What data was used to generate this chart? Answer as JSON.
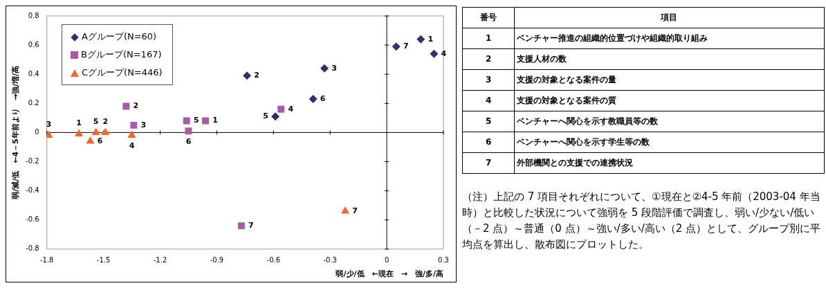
{
  "chart_data": [
    {
      "type": "scatter",
      "xlabel": "弱/少/低　←現在　→　強/多/高",
      "ylabel": "弱/減/低　←4－5年前より　→強/増/高",
      "xlim": [
        -1.8,
        0.3
      ],
      "ylim": [
        -0.8,
        0.8
      ],
      "xticks": [
        -1.8,
        -1.5,
        -1.2,
        -0.9,
        -0.6,
        -0.3,
        0,
        0.3
      ],
      "yticks": [
        -0.8,
        -0.6,
        -0.4,
        -0.2,
        0,
        0.2,
        0.4,
        0.6,
        0.8
      ],
      "legend": "top left",
      "series": [
        {
          "name": "Aグループ(N=60)",
          "color": "#2e3070",
          "marker": "diamond",
          "x": [
            0.18,
            -0.74,
            -0.33,
            0.25,
            -0.59,
            -0.39,
            0.05
          ],
          "values": [
            0.64,
            0.39,
            0.44,
            0.54,
            0.11,
            0.23,
            0.59
          ]
        },
        {
          "name": "Bグループ(N=167)",
          "color": "#a65aa8",
          "marker": "square",
          "x": [
            -0.96,
            -1.38,
            -1.34,
            -0.56,
            -1.06,
            -1.05,
            -0.77
          ],
          "values": [
            0.08,
            0.18,
            0.05,
            0.16,
            0.08,
            0.01,
            -0.64
          ]
        },
        {
          "name": "Cグループ(N=446)",
          "color": "#f2682a",
          "marker": "triangle",
          "x": [
            -1.63,
            -1.49,
            -1.79,
            -1.35,
            -1.54,
            -1.57,
            -0.22
          ],
          "values": [
            -0.01,
            0.0,
            -0.02,
            -0.02,
            0.0,
            -0.06,
            -0.54
          ]
        }
      ],
      "annotations": [
        {
          "text": "1",
          "x": 0.18,
          "y": 0.64
        },
        {
          "text": "2",
          "x": -0.74,
          "y": 0.39
        },
        {
          "text": "3",
          "x": -0.33,
          "y": 0.44
        },
        {
          "text": "4",
          "x": 0.25,
          "y": 0.54
        },
        {
          "text": "5",
          "x": -0.59,
          "y": 0.11
        },
        {
          "text": "6",
          "x": -0.39,
          "y": 0.23
        },
        {
          "text": "7",
          "x": 0.05,
          "y": 0.59
        },
        {
          "text": "1",
          "x": -0.96,
          "y": 0.08
        },
        {
          "text": "2",
          "x": -1.38,
          "y": 0.18
        },
        {
          "text": "3",
          "x": -1.34,
          "y": 0.05
        },
        {
          "text": "4",
          "x": -0.56,
          "y": 0.16
        },
        {
          "text": "5",
          "x": -1.06,
          "y": 0.08
        },
        {
          "text": "6",
          "x": -1.05,
          "y": 0.01
        },
        {
          "text": "7",
          "x": -0.77,
          "y": -0.64
        },
        {
          "text": "1",
          "x": -1.63,
          "y": -0.01
        },
        {
          "text": "2",
          "x": -1.49,
          "y": 0.0
        },
        {
          "text": "3",
          "x": -1.79,
          "y": -0.02
        },
        {
          "text": "4",
          "x": -1.35,
          "y": -0.02
        },
        {
          "text": "5",
          "x": -1.54,
          "y": 0.0
        },
        {
          "text": "6",
          "x": -1.57,
          "y": -0.06
        },
        {
          "text": "7",
          "x": -0.22,
          "y": -0.54
        }
      ]
    },
    {
      "type": "other",
      "annotations": [
        "番号",
        "項目",
        "1",
        "ベンチャー推進の組織的位置づけや組織的取り組み",
        "2",
        "支援人材の数",
        "3",
        "支援の対象となる案件の量",
        "4",
        "支援の対象となる案件の質",
        "5",
        "ベンチャーへ関心を示す教職員等の数",
        "6",
        "ベンチャーへ関心を示す学生等の数",
        "7",
        "外部機関との支援での連携状況"
      ]
    },
    {
      "type": "other",
      "annotations": [
        "（注）上記の 7 項目それぞれについて、①現在と②4-5 年前（2003-04 年当時）と比較した状況について強弱を 5 段階評価で調査し、弱い/少ない/低い（－2 点）～普通（0 点）～強い/多い/高い（2 点）として、グループ別に平均点を算出し、散布図にプロットした。"
      ]
    }
  ]
}
